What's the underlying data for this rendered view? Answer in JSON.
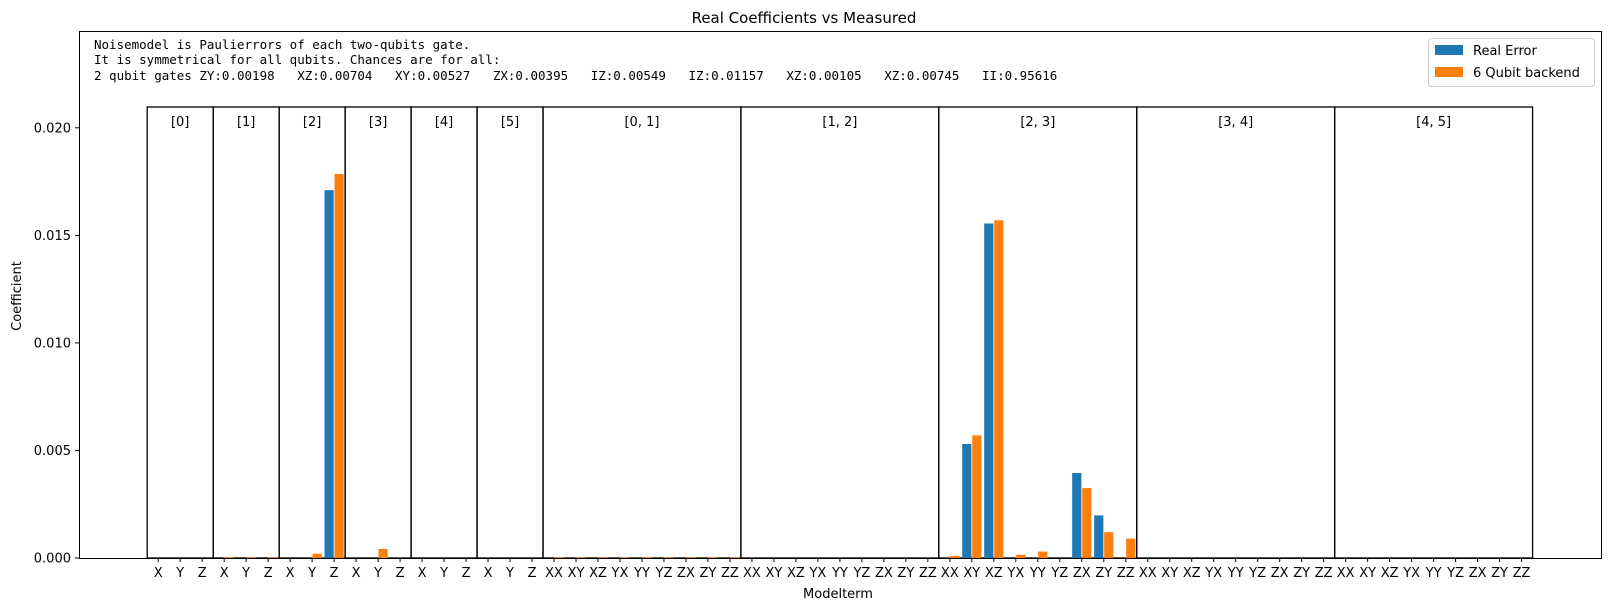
{
  "chart_data": {
    "type": "bar",
    "title": "Real Coefficients vs Measured",
    "xlabel": "Modelterm",
    "ylabel": "Coefficient",
    "ylim": [
      0,
      0.0245
    ],
    "yticks": [
      "0.000",
      "0.005",
      "0.010",
      "0.015",
      "0.020"
    ],
    "grid": false,
    "legend_position": "top-right",
    "annotation_lines": [
      "Noisemodel is Paulierrors of each two-qubits gate.",
      "It is symmetrical for all qubits. Chances are for all:",
      "2 qubit gates ZY:0.00198   XZ:0.00704   XY:0.00527   ZX:0.00395   IZ:0.00549   IZ:0.01157   XZ:0.00105   XZ:0.00745   II:0.95616"
    ],
    "groups": [
      {
        "label": "[0]",
        "terms": [
          "X",
          "Y",
          "Z"
        ]
      },
      {
        "label": "[1]",
        "terms": [
          "X",
          "Y",
          "Z"
        ]
      },
      {
        "label": "[2]",
        "terms": [
          "X",
          "Y",
          "Z"
        ]
      },
      {
        "label": "[3]",
        "terms": [
          "X",
          "Y",
          "Z"
        ]
      },
      {
        "label": "[4]",
        "terms": [
          "X",
          "Y",
          "Z"
        ]
      },
      {
        "label": "[5]",
        "terms": [
          "X",
          "Y",
          "Z"
        ]
      },
      {
        "label": "[0, 1]",
        "terms": [
          "XX",
          "XY",
          "XZ",
          "YX",
          "YY",
          "YZ",
          "ZX",
          "ZY",
          "ZZ"
        ]
      },
      {
        "label": "[1, 2]",
        "terms": [
          "XX",
          "XY",
          "XZ",
          "YX",
          "YY",
          "YZ",
          "ZX",
          "ZY",
          "ZZ"
        ]
      },
      {
        "label": "[2, 3]",
        "terms": [
          "XX",
          "XY",
          "XZ",
          "YX",
          "YY",
          "YZ",
          "ZX",
          "ZY",
          "ZZ"
        ]
      },
      {
        "label": "[3, 4]",
        "terms": [
          "XX",
          "XY",
          "XZ",
          "YX",
          "YY",
          "YZ",
          "ZX",
          "ZY",
          "ZZ"
        ]
      },
      {
        "label": "[4, 5]",
        "terms": [
          "XX",
          "XY",
          "XZ",
          "YX",
          "YY",
          "YZ",
          "ZX",
          "ZY",
          "ZZ"
        ]
      }
    ],
    "series": [
      {
        "name": "Real Error",
        "color": "#1f77b4",
        "values": [
          0,
          0,
          0,
          0,
          0,
          0,
          0,
          0,
          0.0171,
          0,
          0,
          0,
          0,
          0,
          0,
          0,
          0,
          0,
          0,
          0,
          0,
          0,
          0,
          0,
          0,
          0,
          0,
          0,
          0,
          0,
          0,
          0,
          0,
          0,
          0,
          0,
          0,
          0.0053,
          0.01555,
          0,
          0,
          0,
          0.00395,
          0.00198,
          0,
          0,
          0,
          0,
          0,
          0,
          0,
          0,
          0,
          0,
          0,
          0,
          0,
          0,
          0,
          0,
          0,
          0,
          0
        ]
      },
      {
        "name": "6 Qubit backend",
        "color": "#ff7f0e",
        "values": [
          0,
          0,
          0,
          3e-05,
          3e-05,
          3e-05,
          0,
          0.0002,
          0.01785,
          0,
          0.00042,
          0,
          0,
          0,
          0,
          0,
          0,
          0,
          3e-05,
          3e-05,
          3e-05,
          3e-05,
          3e-05,
          3e-05,
          3e-05,
          3e-05,
          3e-05,
          0,
          0,
          0,
          0,
          0,
          0,
          0,
          0,
          0,
          0.0001,
          0.0057,
          0.0157,
          0.00015,
          0.0003,
          0,
          0.00325,
          0.0012,
          0.0009,
          0,
          0,
          0,
          0,
          0,
          0,
          0,
          0,
          0,
          0,
          0,
          0,
          0,
          0,
          0,
          0,
          0,
          0
        ]
      }
    ]
  }
}
